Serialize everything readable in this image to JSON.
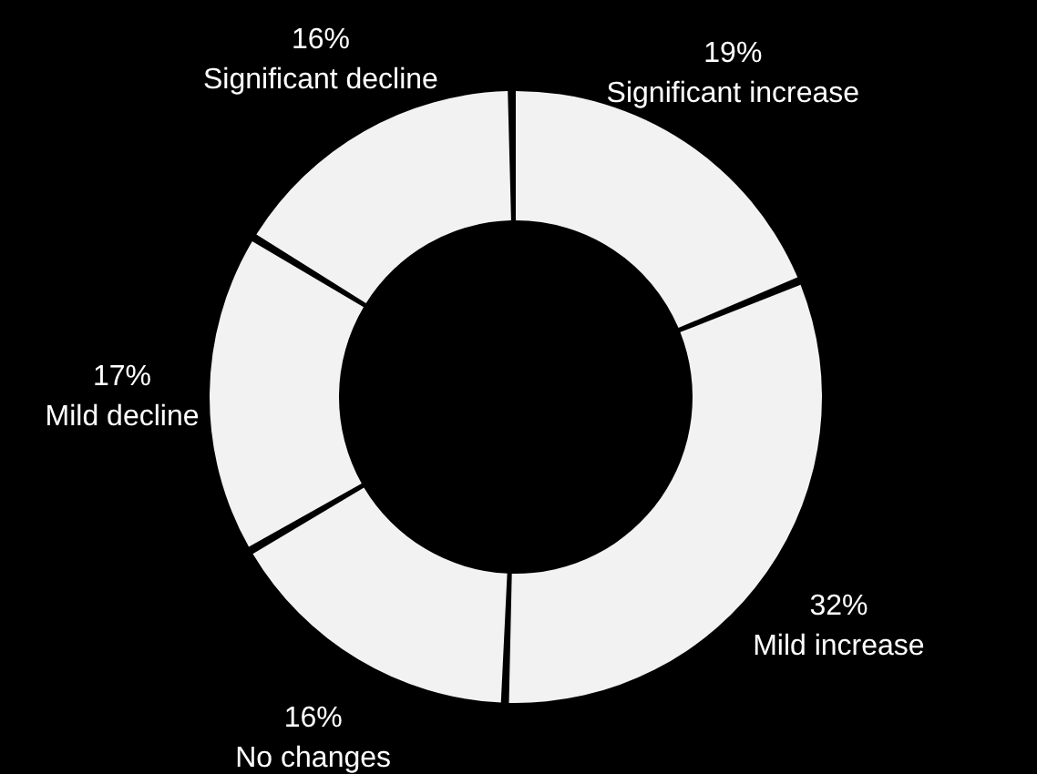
{
  "chart_data": {
    "type": "donut",
    "categories": [
      "Significant increase",
      "Mild increase",
      "No changes",
      "Mild decline",
      "Significant decline"
    ],
    "values": [
      19,
      32,
      16,
      17,
      16
    ],
    "value_labels": [
      "19%",
      "32%",
      "16%",
      "17%",
      "16%"
    ],
    "colors": [
      "#f2f2f2",
      "#f2f2f2",
      "#f2f2f2",
      "#f2f2f2",
      "#f2f2f2"
    ]
  }
}
